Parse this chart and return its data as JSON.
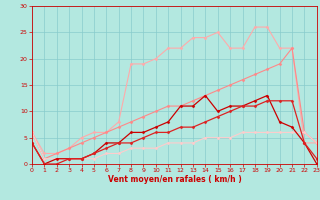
{
  "xlabel": "Vent moyen/en rafales ( km/h )",
  "xlim": [
    0,
    23
  ],
  "ylim": [
    0,
    30
  ],
  "xticks": [
    0,
    1,
    2,
    3,
    4,
    5,
    6,
    7,
    8,
    9,
    10,
    11,
    12,
    13,
    14,
    15,
    16,
    17,
    18,
    19,
    20,
    21,
    22,
    23
  ],
  "yticks": [
    0,
    5,
    10,
    15,
    20,
    25,
    30
  ],
  "bg_color": "#b3e8e0",
  "grid_color": "#88cccc",
  "lines": [
    {
      "x": [
        0,
        1,
        2,
        3,
        4,
        5,
        6,
        7,
        8,
        9,
        10,
        11,
        12,
        13,
        14,
        15,
        16,
        17,
        18,
        19,
        20,
        21,
        22,
        23
      ],
      "y": [
        6,
        2,
        2,
        3,
        5,
        6,
        6,
        8,
        19,
        19,
        20,
        22,
        22,
        24,
        24,
        25,
        22,
        22,
        26,
        26,
        22,
        22,
        4,
        4
      ],
      "color": "#ffaaaa",
      "lw": 0.8,
      "marker": "D",
      "ms": 1.5
    },
    {
      "x": [
        0,
        1,
        2,
        3,
        4,
        5,
        6,
        7,
        8,
        9,
        10,
        11,
        12,
        13,
        14,
        15,
        16,
        17,
        18,
        19,
        20,
        21,
        22,
        23
      ],
      "y": [
        6,
        1,
        2,
        3,
        4,
        5,
        6,
        7,
        8,
        9,
        10,
        11,
        11,
        12,
        13,
        14,
        15,
        16,
        17,
        18,
        19,
        22,
        6,
        4
      ],
      "color": "#ff8888",
      "lw": 0.8,
      "marker": "D",
      "ms": 1.5
    },
    {
      "x": [
        0,
        1,
        2,
        3,
        4,
        5,
        6,
        7,
        8,
        9,
        10,
        11,
        12,
        13,
        14,
        15,
        16,
        17,
        18,
        19,
        20,
        21,
        22,
        23
      ],
      "y": [
        6,
        1,
        1,
        1,
        1,
        1,
        2,
        2,
        3,
        3,
        3,
        4,
        4,
        4,
        5,
        5,
        5,
        6,
        6,
        6,
        6,
        6,
        6,
        4
      ],
      "color": "#ffcccc",
      "lw": 0.8,
      "marker": "D",
      "ms": 1.5
    },
    {
      "x": [
        0,
        1,
        2,
        3,
        4,
        5,
        6,
        7,
        8,
        9,
        10,
        11,
        12,
        13,
        14,
        15,
        16,
        17,
        18,
        19,
        20,
        21,
        22,
        23
      ],
      "y": [
        4,
        0,
        1,
        1,
        1,
        2,
        4,
        4,
        6,
        6,
        7,
        8,
        11,
        11,
        13,
        10,
        11,
        11,
        12,
        13,
        8,
        7,
        4,
        0
      ],
      "color": "#cc0000",
      "lw": 0.9,
      "marker": "D",
      "ms": 1.5
    },
    {
      "x": [
        0,
        1,
        2,
        3,
        4,
        5,
        6,
        7,
        8,
        9,
        10,
        11,
        12,
        13,
        14,
        15,
        16,
        17,
        18,
        19,
        20,
        21,
        22,
        23
      ],
      "y": [
        4,
        0,
        0,
        1,
        1,
        2,
        3,
        4,
        4,
        5,
        6,
        6,
        7,
        7,
        8,
        9,
        10,
        11,
        11,
        12,
        12,
        12,
        4,
        1
      ],
      "color": "#dd2222",
      "lw": 0.9,
      "marker": "D",
      "ms": 1.5
    }
  ]
}
